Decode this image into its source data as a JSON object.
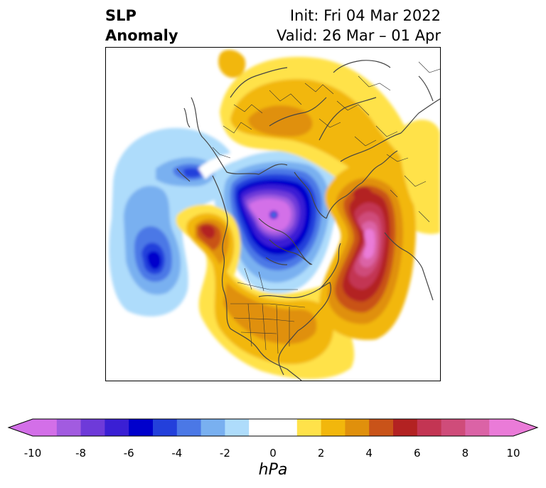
{
  "title": {
    "left_line1": "SLP",
    "left_line2": "Anomaly",
    "right_line1": "Init: Fri 04 Mar 2022",
    "right_line2": "Valid: 26 Mar – 01 Apr"
  },
  "colorbar": {
    "units": "hPa",
    "ticks": [
      "-10",
      "-8",
      "-6",
      "-4",
      "-2",
      "0",
      "2",
      "4",
      "6",
      "8",
      "10"
    ],
    "tick_values": [
      -10,
      -8,
      -6,
      -4,
      -2,
      0,
      2,
      4,
      6,
      8,
      10
    ],
    "levels": [
      -10,
      -9,
      -8,
      -7,
      -6,
      -5,
      -4,
      -3,
      -2,
      -1,
      1,
      2,
      3,
      4,
      5,
      6,
      7,
      8,
      9,
      10
    ],
    "colors": [
      "#d36fe8",
      "#a25be0",
      "#6e3ad9",
      "#3a1fd4",
      "#0000cc",
      "#2340db",
      "#4b78e6",
      "#79b0f0",
      "#aedcfb",
      "#ffffff",
      "#ffe24a",
      "#f2b70c",
      "#e0900c",
      "#c95319",
      "#b32222",
      "#c33553",
      "#cf4c7a",
      "#db63a6",
      "#ea7bd8"
    ],
    "under_color": "#d36fe8",
    "over_color": "#ea7bd8"
  },
  "map": {
    "projection": "polar-stereographic",
    "region": "Northern Hemisphere"
  }
}
